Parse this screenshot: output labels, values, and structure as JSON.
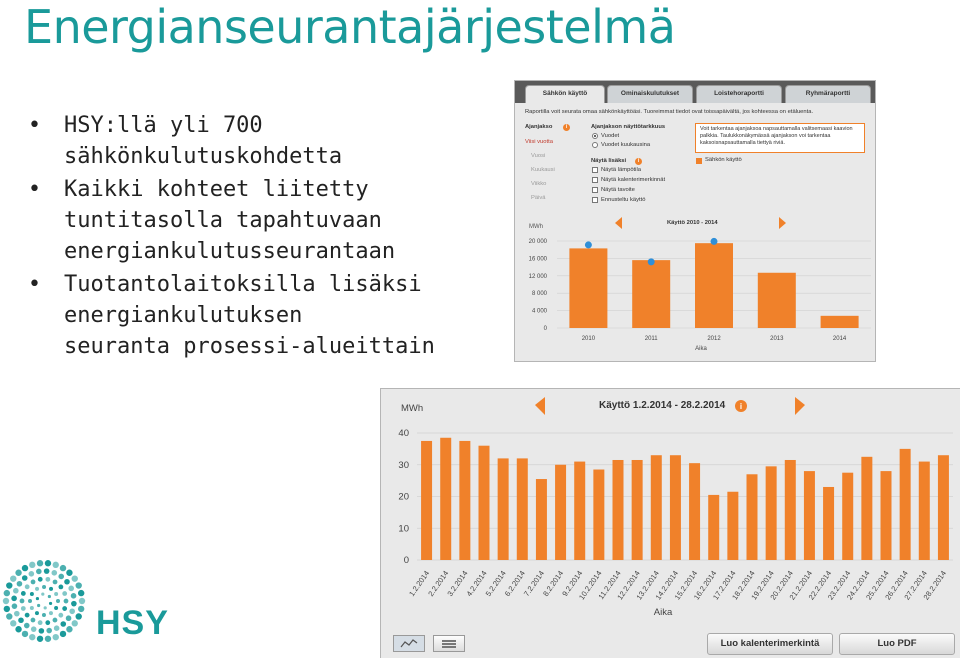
{
  "title": "Energianseurantajärjestelmä",
  "bullets": [
    [
      "HSY:llä yli 700",
      "sähkönkulutuskohdetta"
    ],
    [
      "Kaikki kohteet liitetty",
      "tuntitasolla tapahtuvaan",
      "energiankulutusseurantaan"
    ],
    [
      "Tuotantolaitoksilla lisäksi",
      "energiankulutuksen",
      "seuranta prosessi-alueittain"
    ]
  ],
  "logo_text": "HSY",
  "colors": {
    "accent": "#1a9a9a",
    "bar": "#f0812a",
    "marker": "#2f8fd8"
  },
  "screenshot1": {
    "tabs": [
      "Sähkön käyttö",
      "Ominaiskulutukset",
      "Loisteho­raportti",
      "Ryhmäraportti"
    ],
    "intro": "Raportilla voit seurata omaa sähkönkäyttöäsi. Tuoreimmat tiedot ovat toissapäivältä, jos kohteessa on etäluenta.",
    "period_label": "Ajanjakso",
    "period_options": [
      "Viisi vuotta",
      "Vuosi",
      "Kuukausi",
      "Viikko",
      "Päivä"
    ],
    "display_label": "Ajanjakson näyttötarkkuus",
    "display_options": [
      "Vuodet",
      "Vuodet kuukausina"
    ],
    "extra_label": "Näytä lisäksi",
    "extra_options": [
      "Näytä lämpötila",
      "Näytä kalenterimerkinnät",
      "Näytä tavoite",
      "Ennusteltu käyttö"
    ],
    "tip": "Voit tarkentaa ajanjaksoa napsauttamalla valitsemaasi kaavion palkkia. Taulukkonäkymässä ajanjakson voi tarkentaa kaksoisnapsauttamalla tiettyä riviä.",
    "legend": "Sähkön käyttö",
    "chart_data": {
      "type": "bar",
      "title": "Käyttö 2010 - 2014",
      "ylabel": "MWh",
      "xlabel": "Aika",
      "ylim": [
        0,
        20000
      ],
      "yticks": [
        "20 000",
        "16 000",
        "12 000",
        "8 000",
        "4 000",
        "0"
      ],
      "categories": [
        "2010",
        "2011",
        "2012",
        "2013",
        "2014"
      ],
      "values": [
        18300,
        15600,
        19500,
        12700,
        2800
      ],
      "markers": [
        19100,
        15200,
        19900
      ]
    }
  },
  "screenshot2": {
    "chart_data": {
      "type": "bar",
      "title": "Käyttö 1.2.2014 - 28.2.2014",
      "ylabel": "MWh",
      "xlabel": "Aika",
      "ylim": [
        0,
        40
      ],
      "yticks": [
        "40",
        "30",
        "20",
        "10",
        "0"
      ],
      "categories": [
        "1.2.2014",
        "2.2.2014",
        "3.2.2014",
        "4.2.2014",
        "5.2.2014",
        "6.2.2014",
        "7.2.2014",
        "8.2.2014",
        "9.2.2014",
        "10.2.2014",
        "11.2.2014",
        "12.2.2014",
        "13.2.2014",
        "14.2.2014",
        "15.2.2014",
        "16.2.2014",
        "17.2.2014",
        "18.2.2014",
        "19.2.2014",
        "20.2.2014",
        "21.2.2014",
        "22.2.2014",
        "23.2.2014",
        "24.2.2014",
        "25.2.2014",
        "26.2.2014",
        "27.2.2014",
        "28.2.2014"
      ],
      "values": [
        37.5,
        38.5,
        37.5,
        36,
        32,
        32,
        25.5,
        30,
        31,
        28.5,
        31.5,
        31.5,
        33,
        33,
        30.5,
        20.5,
        21.5,
        27,
        29.5,
        31.5,
        28,
        23,
        27.5,
        32.5,
        28,
        35,
        31,
        33
      ]
    },
    "buttons": [
      "Luo kalenterimerkintä",
      "Luo PDF"
    ]
  }
}
